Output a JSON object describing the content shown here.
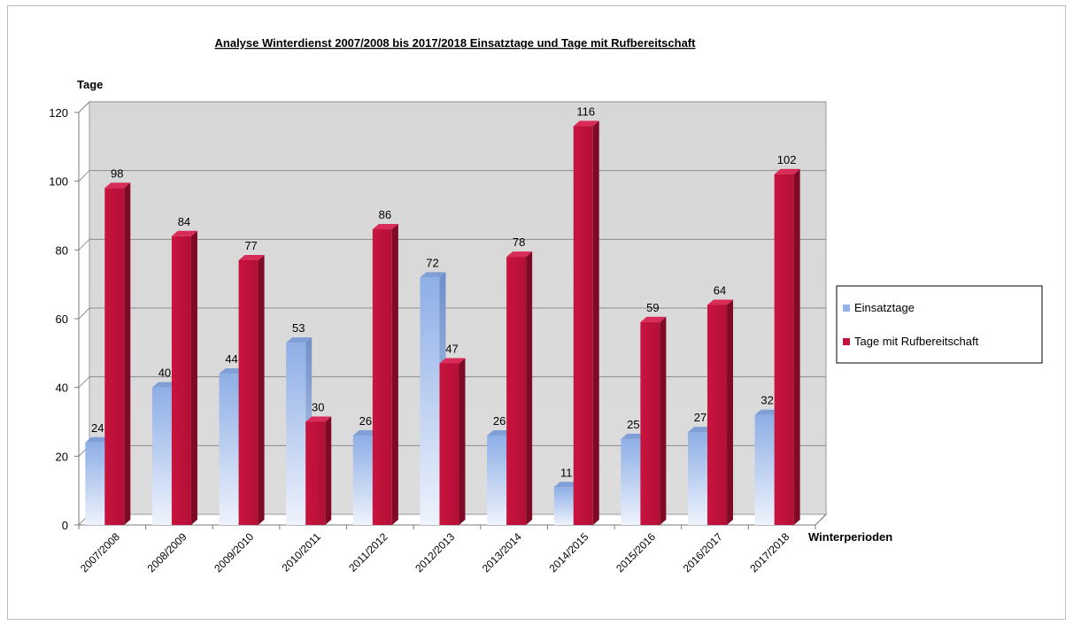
{
  "chart_data": {
    "type": "bar",
    "title": "Analyse Winterdienst 2007/2008 bis 2017/2018   Einsatztage und Tage mit Rufbereitschaft",
    "xlabel": "Winterperioden",
    "ylabel": "Tage",
    "ylim": [
      0,
      120
    ],
    "yticks": [
      "0",
      "20",
      "40",
      "60",
      "80",
      "100",
      "120"
    ],
    "grid": true,
    "legend": "right",
    "categories": [
      "2007/2008",
      "2008/2009",
      "2009/2010",
      "2010/2011",
      "2011/2012",
      "2012/2013",
      "2013/2014",
      "2014/2015",
      "2015/2016",
      "2016/2017",
      "2017/2018"
    ],
    "series": [
      {
        "name": "Einsatztage",
        "color": "#95b3e6",
        "values": [
          24,
          40,
          44,
          53,
          26,
          72,
          26,
          11,
          25,
          27,
          32
        ]
      },
      {
        "name": "Tage mit Rufbereitschaft",
        "color": "#c0143c",
        "values": [
          98,
          84,
          77,
          30,
          86,
          47,
          78,
          116,
          59,
          64,
          102
        ]
      }
    ]
  }
}
